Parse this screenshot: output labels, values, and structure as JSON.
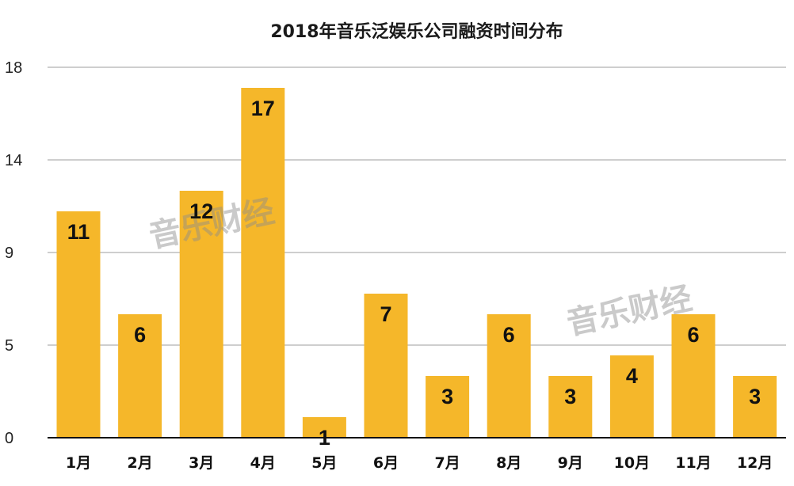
{
  "chart_data": {
    "type": "bar",
    "title": "2018年音乐泛娱乐公司融资时间分布",
    "categories": [
      "1月",
      "2月",
      "3月",
      "4月",
      "5月",
      "6月",
      "7月",
      "8月",
      "9月",
      "10月",
      "11月",
      "12月"
    ],
    "values": [
      11,
      6,
      12,
      17,
      1,
      7,
      3,
      6,
      3,
      4,
      6,
      3
    ],
    "y_ticks": [
      "0",
      "5",
      "9",
      "14",
      "18"
    ],
    "ylim": [
      0,
      18
    ],
    "grid": true,
    "legend": "none",
    "bar_color": "#F5B72A",
    "grid_color": "#BDBDBD"
  },
  "watermarks": [
    "音乐财经",
    "音乐财经"
  ]
}
